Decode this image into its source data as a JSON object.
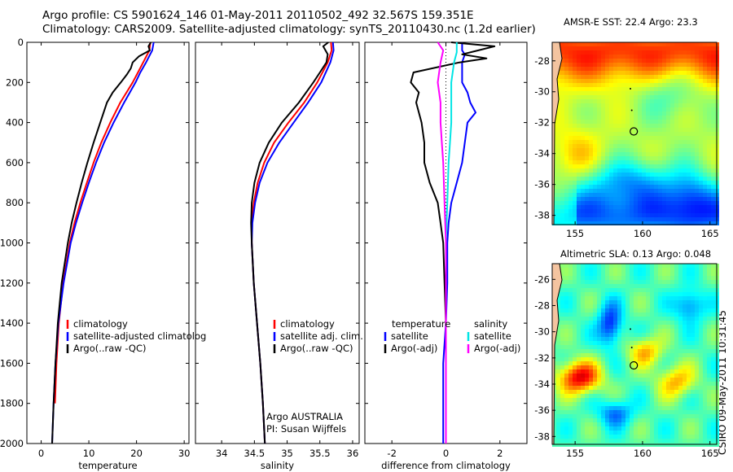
{
  "header": {
    "line1": "Argo profile: CS 5901624_146 01-May-2011 20110502_492 32.567S 159.351E",
    "line2": "Climatology: CARS2009. Satellite-adjusted climatology: synTS_20110430.nc (1.2d earlier)"
  },
  "stamp": "CSIRO 09-May-2011 10:31:45",
  "chart_data": [
    {
      "type": "line",
      "panel": "temperature",
      "xlabel": "temperature",
      "ylabel": "",
      "xlim": [
        -3,
        31
      ],
      "ylim": [
        2000,
        0
      ],
      "xticks": [
        0,
        10,
        20,
        30
      ],
      "yticks": [
        0,
        200,
        400,
        600,
        800,
        1000,
        1200,
        1400,
        1600,
        1800,
        2000
      ],
      "legend": [
        {
          "label": "climatology",
          "color": "#ff0000"
        },
        {
          "label": "satellite-adjusted climatolog",
          "color": "#0000ff"
        },
        {
          "label": "Argo(..raw -QC)",
          "color": "#000000"
        }
      ],
      "series": [
        {
          "color": "#ff0000",
          "depth": [
            0,
            40,
            100,
            150,
            200,
            300,
            400,
            500,
            600,
            700,
            800,
            900,
            1000,
            1200,
            1400,
            1600,
            1800
          ],
          "values": [
            22.9,
            22.7,
            21.4,
            20.3,
            19.2,
            16.6,
            14.5,
            12.6,
            11.0,
            9.6,
            8.2,
            7.0,
            6.0,
            4.6,
            3.7,
            3.2,
            2.9
          ]
        },
        {
          "color": "#0000ff",
          "depth": [
            0,
            40,
            100,
            150,
            200,
            300,
            400,
            500,
            600,
            700,
            800,
            900,
            1000,
            1200,
            1400,
            1600,
            1800,
            2000
          ],
          "values": [
            23.6,
            23.3,
            22.0,
            20.8,
            19.8,
            17.4,
            15.2,
            13.2,
            11.5,
            10.0,
            8.6,
            7.3,
            6.2,
            4.7,
            3.6,
            3.0,
            2.6,
            2.3
          ]
        },
        {
          "color": "#000000",
          "depth": [
            0,
            20,
            40,
            70,
            100,
            130,
            160,
            200,
            250,
            300,
            400,
            500,
            600,
            700,
            800,
            900,
            1000,
            1200,
            1400,
            1600,
            1800,
            2000
          ],
          "values": [
            23.0,
            22.5,
            22.8,
            20.5,
            19.2,
            18.8,
            18.0,
            16.7,
            15.0,
            13.8,
            12.4,
            11.0,
            9.7,
            8.5,
            7.4,
            6.4,
            5.6,
            4.3,
            3.5,
            3.0,
            2.6,
            2.3
          ]
        }
      ]
    },
    {
      "type": "line",
      "panel": "salinity",
      "xlabel": "salinity",
      "ylabel": "",
      "xlim": [
        33.6,
        36.1
      ],
      "ylim": [
        2000,
        0
      ],
      "xticks": [
        34,
        34.5,
        35,
        35.5,
        36
      ],
      "xtick_labels": [
        "34",
        "34.5",
        "35",
        "35.5",
        "36"
      ],
      "legend": [
        {
          "label": "climatology",
          "color": "#ff0000"
        },
        {
          "label": "satellite adj. clim.",
          "color": "#0000ff"
        },
        {
          "label": "Argo(..raw -QC)",
          "color": "#000000"
        }
      ],
      "annotation": [
        "Argo AUSTRALIA",
        "PI: Susan Wijffels"
      ],
      "series": [
        {
          "color": "#ff0000",
          "depth": [
            0,
            40,
            100,
            200,
            300,
            400,
            500,
            600,
            700,
            800,
            900,
            1000,
            1200,
            1400,
            1600,
            1800,
            2000
          ],
          "values": [
            35.67,
            35.68,
            35.62,
            35.46,
            35.26,
            35.02,
            34.8,
            34.65,
            34.55,
            34.49,
            34.46,
            34.46,
            34.49,
            34.54,
            34.59,
            34.63,
            34.66
          ]
        },
        {
          "color": "#0000ff",
          "depth": [
            0,
            40,
            100,
            200,
            300,
            400,
            500,
            600,
            700,
            800,
            900,
            1000,
            1200,
            1400,
            1600,
            1800,
            2000
          ],
          "values": [
            35.7,
            35.71,
            35.66,
            35.52,
            35.32,
            35.1,
            34.88,
            34.7,
            34.58,
            34.51,
            34.47,
            34.46,
            34.49,
            34.54,
            34.59,
            34.63,
            34.66
          ]
        },
        {
          "color": "#000000",
          "depth": [
            0,
            20,
            60,
            100,
            150,
            200,
            300,
            400,
            500,
            600,
            700,
            800,
            900,
            1000,
            1200,
            1400,
            1600,
            1800,
            2000
          ],
          "values": [
            35.63,
            35.55,
            35.62,
            35.6,
            35.5,
            35.4,
            35.18,
            34.92,
            34.72,
            34.58,
            34.5,
            34.46,
            34.45,
            34.46,
            34.49,
            34.54,
            34.59,
            34.63,
            34.66
          ]
        }
      ]
    },
    {
      "type": "line",
      "panel": "difference",
      "xlabel": "difference from climatology",
      "ylabel": "",
      "xlim": [
        -3,
        3
      ],
      "ylim": [
        2000,
        0
      ],
      "xticks": [
        -2,
        0,
        2
      ],
      "legend_left": {
        "heading": "temperature",
        "items": [
          {
            "label": "satellite",
            "color": "#0000ff"
          },
          {
            "label": "Argo(-adj)",
            "color": "#000000"
          }
        ]
      },
      "legend_right": {
        "heading": "salinity",
        "items": [
          {
            "label": "satellite",
            "color": "#00e5e5"
          },
          {
            "label": "Argo(-adj)",
            "color": "#ff00ff"
          }
        ]
      },
      "series": [
        {
          "name_group": "temperature",
          "color": "#0000ff",
          "depth": [
            0,
            40,
            60,
            100,
            150,
            200,
            250,
            300,
            350,
            400,
            500,
            600,
            700,
            800,
            900,
            1000,
            1200,
            1400,
            1600,
            1800,
            2000
          ],
          "values": [
            0.6,
            0.6,
            0.7,
            0.6,
            0.6,
            0.6,
            0.8,
            0.9,
            1.1,
            0.8,
            0.7,
            0.6,
            0.4,
            0.2,
            0.1,
            0.05,
            0.05,
            0.0,
            -0.1,
            -0.1,
            -0.1
          ]
        },
        {
          "name_group": "temperature",
          "color": "#000000",
          "depth": [
            0,
            20,
            40,
            60,
            80,
            100,
            150,
            200,
            250,
            300,
            400,
            500,
            600,
            700,
            800,
            900,
            1000,
            1200,
            1400,
            1600,
            1800,
            2000
          ],
          "values": [
            0.2,
            1.8,
            1.2,
            0.6,
            1.5,
            0.5,
            -1.2,
            -1.3,
            -1.0,
            -1.1,
            -0.9,
            -0.8,
            -0.8,
            -0.6,
            -0.3,
            -0.2,
            -0.1,
            -0.05,
            0.0,
            0.0,
            0.0,
            0.0
          ]
        },
        {
          "name_group": "salinity",
          "color": "#00e5e5",
          "depth": [
            0,
            50,
            100,
            200,
            300,
            400,
            500,
            600,
            800,
            1000,
            1200,
            1400,
            1600,
            1800,
            2000
          ],
          "values": [
            0.4,
            0.4,
            0.3,
            0.2,
            0.2,
            0.2,
            0.15,
            0.1,
            0.05,
            0.0,
            0.0,
            0.0,
            0.0,
            0.0,
            0.0
          ]
        },
        {
          "name_group": "salinity",
          "color": "#ff00ff",
          "depth": [
            0,
            40,
            100,
            200,
            300,
            400,
            500,
            600,
            800,
            1000,
            1200,
            1400,
            1600,
            1800,
            2000
          ],
          "values": [
            -0.3,
            -0.1,
            -0.2,
            -0.3,
            -0.2,
            -0.2,
            -0.15,
            -0.1,
            -0.05,
            0.0,
            0.0,
            0.0,
            0.0,
            0.0,
            0.0
          ]
        }
      ]
    },
    {
      "type": "heatmap",
      "panel": "sst-map",
      "title": "AMSR-E SST: 22.4 Argo: 23.3",
      "xlim": [
        153.3,
        165.5
      ],
      "ylim": [
        -38.6,
        -26.8
      ],
      "xticks": [
        155,
        160,
        165
      ],
      "yticks": [
        -28,
        -30,
        -32,
        -34,
        -36,
        -38
      ],
      "marker": {
        "lon": 159.35,
        "lat": -32.57
      },
      "track": [
        {
          "lon": 159.1,
          "lat": -29.8
        },
        {
          "lon": 159.2,
          "lat": -31.2
        }
      ]
    },
    {
      "type": "heatmap",
      "panel": "sla-map",
      "title": "Altimetric SLA: 0.13 Argo: 0.048",
      "xlim": [
        153.3,
        165.5
      ],
      "ylim": [
        -38.6,
        -24.8
      ],
      "xticks": [
        155,
        160,
        165
      ],
      "yticks": [
        -26,
        -28,
        -30,
        -32,
        -34,
        -36,
        -38
      ],
      "marker": {
        "lon": 159.35,
        "lat": -32.57
      },
      "track": [
        {
          "lon": 159.1,
          "lat": -29.8
        },
        {
          "lon": 159.2,
          "lat": -31.2
        }
      ]
    }
  ]
}
